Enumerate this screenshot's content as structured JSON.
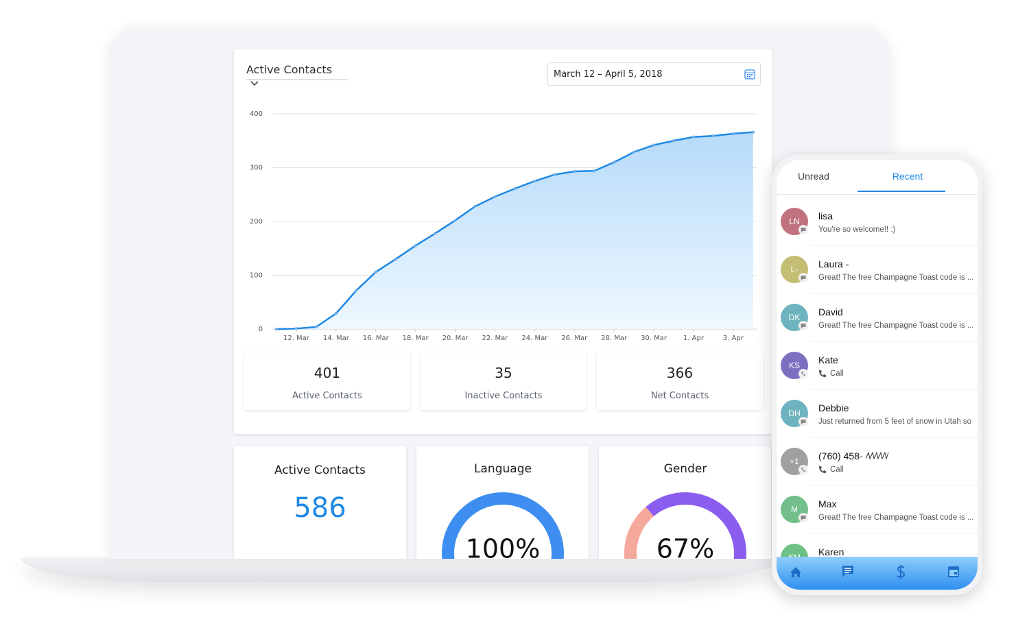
{
  "chart_data": [
    {
      "type": "line",
      "categories": [
        null,
        "12. Mar",
        null,
        "14. Mar",
        null,
        "16. Mar",
        null,
        "18. Mar",
        null,
        "20. Mar",
        null,
        "22. Mar",
        null,
        "24. Mar",
        null,
        "26. Mar",
        null,
        "28. Mar",
        null,
        "30. Mar",
        null,
        "1. Apr",
        null,
        "3. Apr",
        null
      ],
      "values": [
        0,
        1,
        4,
        29,
        71,
        106,
        130,
        155,
        178,
        202,
        228,
        246,
        261,
        275,
        287,
        293,
        294,
        310,
        329,
        342,
        350,
        357,
        359,
        363,
        366
      ],
      "color": "#1e88e5",
      "ylim": [
        0,
        400
      ],
      "yticks": [
        0,
        100,
        200,
        300,
        400
      ],
      "grid": true
    },
    {
      "type": "donut",
      "title": "Language",
      "values": [
        100
      ],
      "colors": [
        "#3d8ef0"
      ],
      "center_label": "100%"
    },
    {
      "type": "donut",
      "title": "Gender",
      "values": [
        67,
        33
      ],
      "colors": [
        "#8a5cf0",
        "#f5a99c"
      ],
      "center_label": "67%"
    }
  ],
  "dashboard": {
    "metric_select": "Active Contacts",
    "date_range": "March 12 – April 5, 2018",
    "stats": [
      {
        "value": 401,
        "label": "Active Contacts"
      },
      {
        "value": 35,
        "label": "Inactive Contacts"
      },
      {
        "value": 366,
        "label": "Net Contacts"
      }
    ],
    "summary": {
      "title": "Active Contacts",
      "value": 586
    }
  },
  "phone": {
    "tabs": [
      "Unread",
      "Recent"
    ],
    "active_tab": 1,
    "conversations": [
      {
        "initials": "LN",
        "name": "lisa",
        "preview": "You're so welcome!! :)",
        "kind": "message",
        "color": "#c0727f"
      },
      {
        "initials": "L-",
        "name": "Laura -",
        "preview": "Great! The free Champagne Toast code is ...",
        "kind": "message",
        "color": "#c4bd74"
      },
      {
        "initials": "DK",
        "name": "David",
        "preview": "Great! The free Champagne Toast code is ...",
        "kind": "message",
        "color": "#6fb3be"
      },
      {
        "initials": "KS",
        "name": "Kate",
        "preview": "Call",
        "kind": "call",
        "color": "#7d6fc0"
      },
      {
        "initials": "DH",
        "name": "Debbie",
        "preview": "Just returned from 5 feet of snow in Utah so",
        "kind": "message",
        "color": "#6fb3c0"
      },
      {
        "initials": "+1",
        "name": "(760) 458-",
        "preview": "Call",
        "kind": "call",
        "color": "#a0a0a0"
      },
      {
        "initials": "M",
        "name": "Max",
        "preview": "Great! The free Champagne Toast code is ...",
        "kind": "message",
        "color": "#72bf8a"
      },
      {
        "initials": "KM",
        "name": "Karen",
        "preview": "",
        "kind": "message",
        "color": "#6fc085"
      }
    ]
  }
}
